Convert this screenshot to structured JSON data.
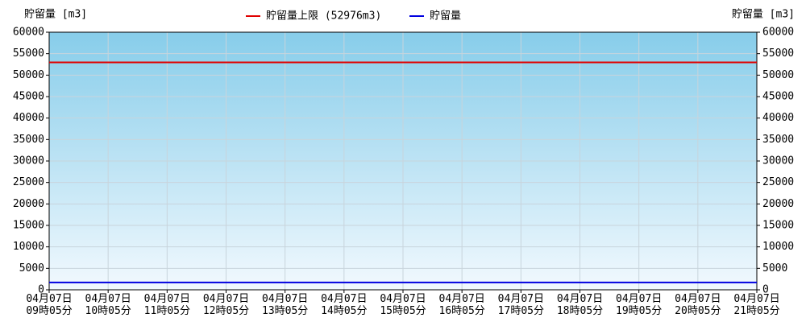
{
  "chart_data": {
    "type": "line",
    "y_label": "貯留量 [m3]",
    "y2_label": "貯留量 [m3]",
    "categories": [
      "04月07日\n09時05分",
      "04月07日\n10時05分",
      "04月07日\n11時05分",
      "04月07日\n12時05分",
      "04月07日\n13時05分",
      "04月07日\n14時05分",
      "04月07日\n15時05分",
      "04月07日\n16時05分",
      "04月07日\n17時05分",
      "04月07日\n18時05分",
      "04月07日\n19時05分",
      "04月07日\n20時05分",
      "04月07日\n21時05分"
    ],
    "series": [
      {
        "name": "貯留量上限 (52976m3)",
        "color": "#e00000",
        "values": [
          52976,
          52976,
          52976,
          52976,
          52976,
          52976,
          52976,
          52976,
          52976,
          52976,
          52976,
          52976,
          52976
        ]
      },
      {
        "name": "貯留量",
        "color": "#0000e0",
        "values": [
          1700,
          1700,
          1700,
          1700,
          1700,
          1700,
          1700,
          1700,
          1700,
          1700,
          1700,
          1700,
          1700
        ]
      }
    ],
    "ylim": [
      0,
      60000
    ],
    "yticks": [
      0,
      5000,
      10000,
      15000,
      20000,
      25000,
      30000,
      35000,
      40000,
      45000,
      50000,
      55000,
      60000
    ],
    "y2lim": [
      0,
      60000
    ],
    "y2ticks": [
      0,
      5000,
      10000,
      15000,
      20000,
      25000,
      30000,
      35000,
      40000,
      45000,
      50000,
      55000,
      60000
    ],
    "grid": true
  }
}
